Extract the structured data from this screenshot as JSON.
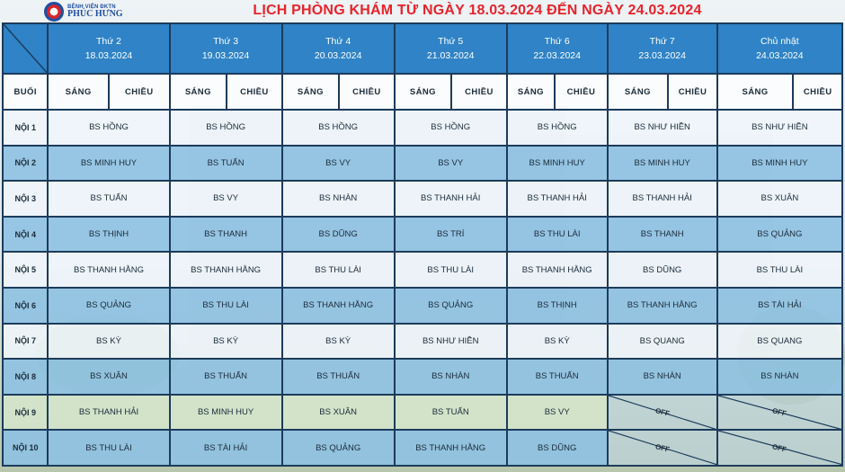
{
  "logo": {
    "line1": "BỆNH VIỆN ĐKTN",
    "line2": "PHÚC HƯNG"
  },
  "title": "LỊCH PHÒNG KHÁM TỪ NGÀY 18.03.2024 ĐẾN NGÀY 24.03.2024",
  "days": [
    {
      "name": "Thứ 2",
      "date": "18.03.2024"
    },
    {
      "name": "Thứ 3",
      "date": "19.03.2024"
    },
    {
      "name": "Thứ 4",
      "date": "20.03.2024"
    },
    {
      "name": "Thứ 5",
      "date": "21.03.2024"
    },
    {
      "name": "Thứ 6",
      "date": "22.03.2024"
    },
    {
      "name": "Thứ 7",
      "date": "23.03.2024"
    },
    {
      "name": "Chủ nhật",
      "date": "24.03.2024"
    }
  ],
  "session_header": "BUỔI",
  "morning_label": "SÁNG",
  "afternoon_label": "CHIỀU",
  "off_label": "OFF",
  "rows": [
    {
      "room": "NỘI 1",
      "cells": [
        "BS HỒNG",
        "BS HỒNG",
        "BS HỒNG",
        "BS HỒNG",
        "BS HỒNG",
        "BS NHƯ HIỀN",
        "BS NHƯ HIỀN"
      ]
    },
    {
      "room": "NỘI 2",
      "cells": [
        "BS MINH HUY",
        "BS TUẤN",
        "BS VY",
        "BS VY",
        "BS MINH HUY",
        "BS MINH HUY",
        "BS MINH HUY"
      ]
    },
    {
      "room": "NỘI 3",
      "cells": [
        "BS TUẤN",
        "BS VY",
        "BS NHÀN",
        "BS THANH HẢI",
        "BS THANH HẢI",
        "BS THANH HẢI",
        "BS XUÂN"
      ]
    },
    {
      "room": "NỘI 4",
      "cells": [
        "BS THỊNH",
        "BS THANH",
        "BS DŨNG",
        "BS TRÍ",
        "BS THU LÀI",
        "BS THANH",
        "BS QUẢNG"
      ]
    },
    {
      "room": "NỘI 5",
      "cells": [
        "BS THANH HẰNG",
        "BS THANH HẰNG",
        "BS THU LÀI",
        "BS THU LÀI",
        "BS THANH HẰNG",
        "BS DŨNG",
        "BS THU LÀI"
      ]
    },
    {
      "room": "NỘI 6",
      "cells": [
        "BS QUẢNG",
        "BS THU LÀI",
        "BS THANH HẰNG",
        "BS QUẢNG",
        "BS THỊNH",
        "BS THANH HẰNG",
        "BS TÀI HẢI"
      ]
    },
    {
      "room": "NỘI 7",
      "cells": [
        "BS KỲ",
        "BS KỲ",
        "BS KỲ",
        "BS NHƯ HIỀN",
        "BS KỲ",
        "BS QUANG",
        "BS QUANG"
      ]
    },
    {
      "room": "NỘI 8",
      "cells": [
        "BS XUÂN",
        "BS THUẤN",
        "BS THUẤN",
        "BS NHÀN",
        "BS THUẤN",
        "BS NHÀN",
        "BS NHÀN"
      ]
    },
    {
      "room": "NỘI 9",
      "cells": [
        "BS THANH HẢI",
        "BS MINH HUY",
        "BS XUÂN",
        "BS TUẤN",
        "BS VY",
        "OFF",
        "OFF"
      ]
    },
    {
      "room": "NỘI 10",
      "cells": [
        "BS THU LÀI",
        "BS TÀI HẢI",
        "BS QUẢNG",
        "BS THANH HẰNG",
        "BS DŨNG",
        "OFF",
        "OFF"
      ]
    }
  ],
  "colors": {
    "header_blue": "#2f83c6",
    "title_red": "#e8232a",
    "row_dark": "#8cc0e2",
    "row_light": "#f0f6fb",
    "border": "#1c3b5c"
  }
}
